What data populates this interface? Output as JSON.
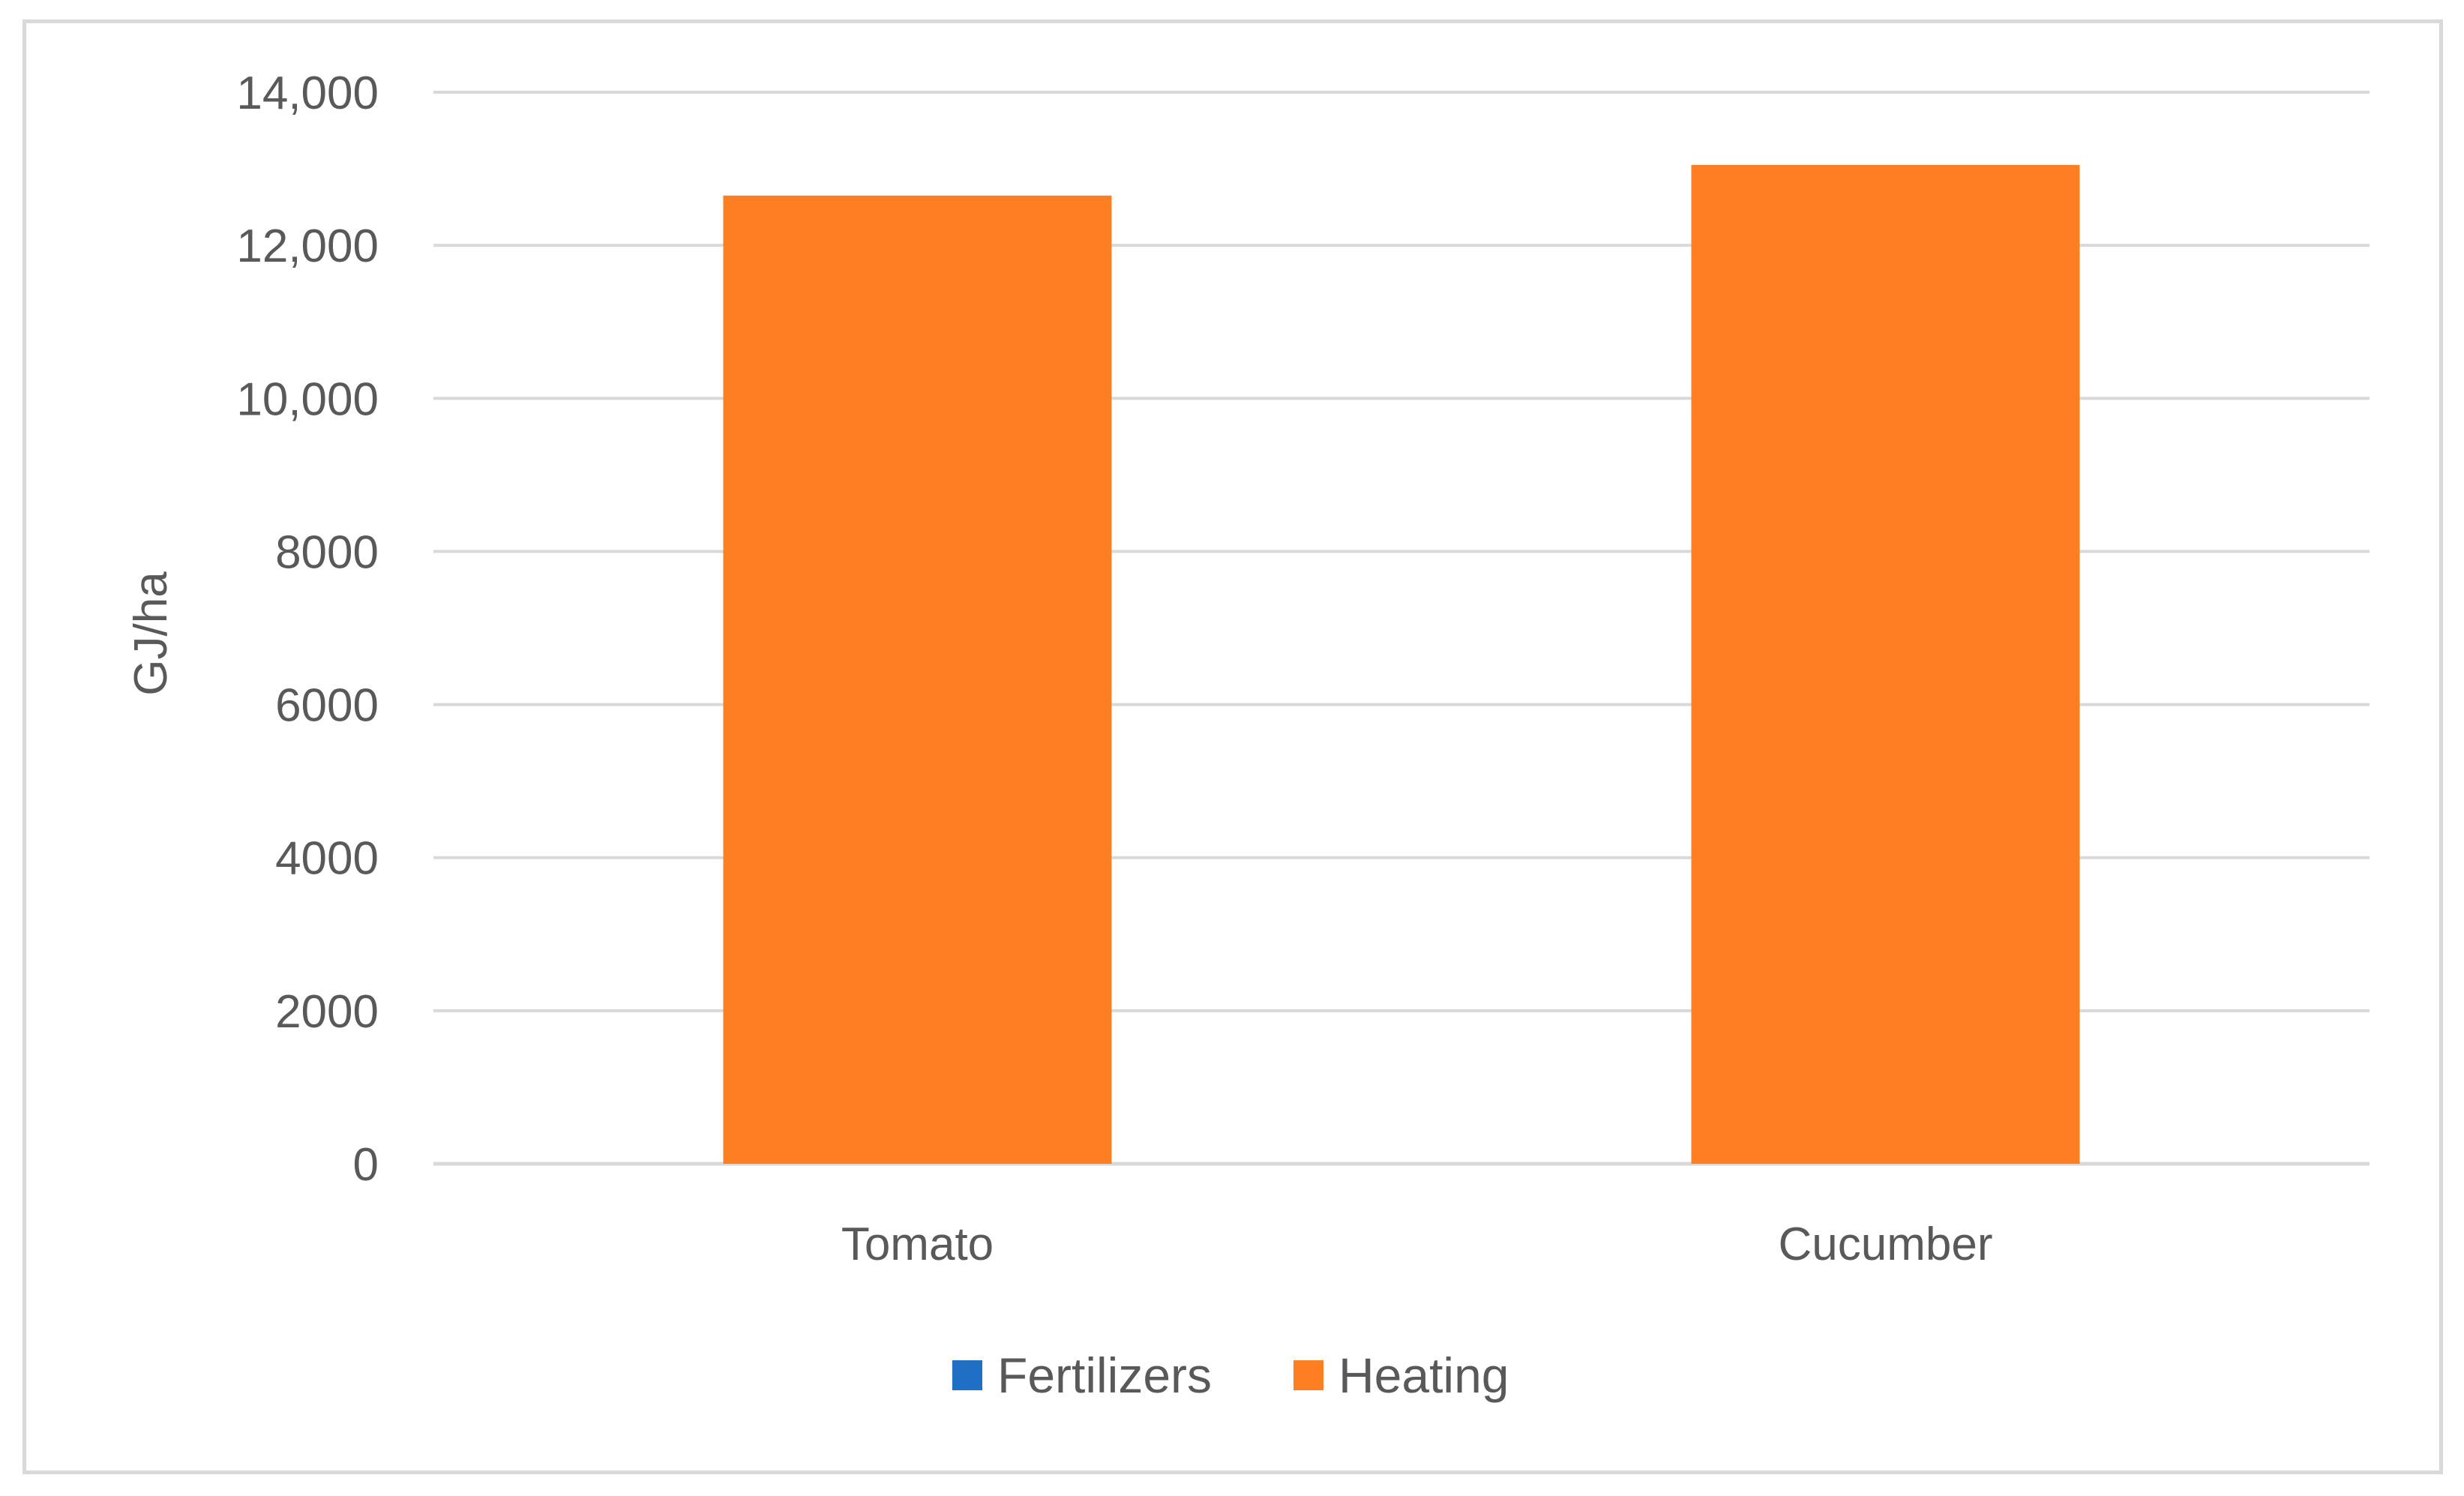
{
  "chart_data": {
    "type": "bar",
    "title": "",
    "xlabel": "",
    "ylabel": "GJ/ha",
    "categories": [
      "Tomato",
      "Cucumber"
    ],
    "series": [
      {
        "name": "Fertilizers",
        "color": "#1f6fc5",
        "values": [
          0,
          0
        ]
      },
      {
        "name": "Heating",
        "color": "#fd7f22",
        "values": [
          12650,
          13050
        ]
      }
    ],
    "ylim": [
      0,
      14000
    ],
    "yticks": [
      0,
      2000,
      4000,
      6000,
      8000,
      10000,
      12000,
      14000
    ],
    "ytick_labels": [
      "0",
      "2000",
      "4000",
      "6000",
      "8000",
      "10,000",
      "12,000",
      "14,000"
    ],
    "grid": true,
    "legend_position": "bottom",
    "colors": {
      "grid": "#d9d9d9",
      "text": "#595959",
      "frame": "#d9d9d9"
    }
  }
}
